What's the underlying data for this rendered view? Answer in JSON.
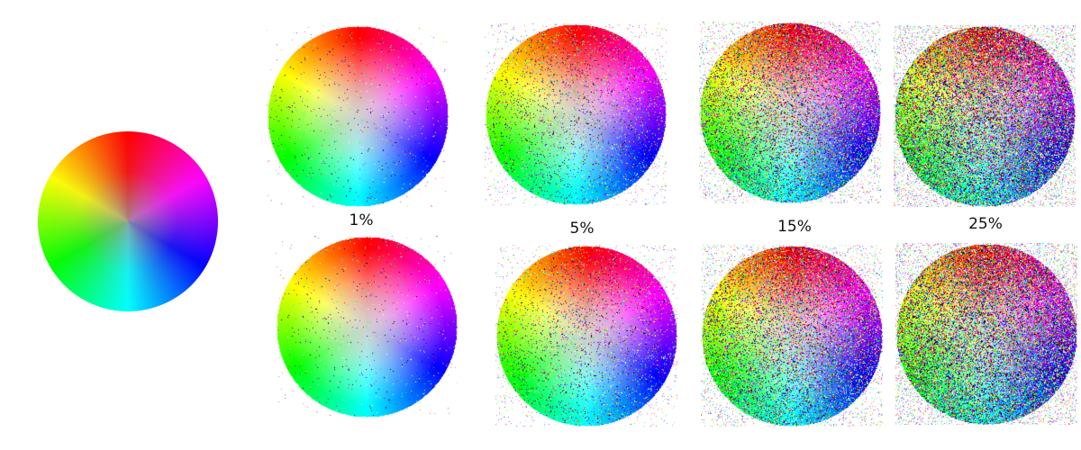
{
  "original": {
    "noise_percent": 0
  },
  "columns": [
    {
      "label": "1%",
      "noise_percent": 1
    },
    {
      "label": "5%",
      "noise_percent": 5
    },
    {
      "label": "15%",
      "noise_percent": 15
    },
    {
      "label": "25%",
      "noise_percent": 25
    }
  ],
  "rows": [
    {
      "row": "top"
    },
    {
      "row": "bottom"
    }
  ],
  "colors": {
    "background": "#ffffff",
    "wheel_top": "#ff0000",
    "wheel_right": "#0000ff",
    "wheel_bottom": "#00ffff",
    "wheel_left": "#00ff00"
  }
}
